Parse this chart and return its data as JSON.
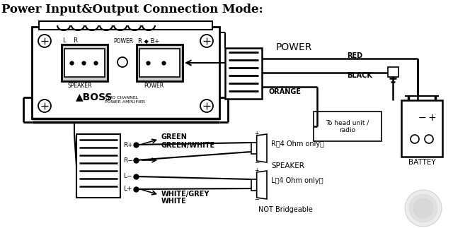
{
  "title": "Power Input&Output Connection Mode:",
  "bg_color": "#ffffff",
  "fg_color": "#000000",
  "labels": {
    "power": "POWER",
    "red": "RED",
    "black": "BLACK",
    "orange": "ORANGE",
    "to_head": "To head unit /\nradio",
    "r_speaker": "R（4 Ohm only）",
    "l_speaker": "L（4 Ohm only）",
    "speaker_section": "SPEAKER",
    "not_bridgeable": "NOT Bridgeable",
    "battery": "BATTEY",
    "green": "GREEN",
    "green_white": "GREEN/WHITE",
    "white_grey": "WHITE/GREY",
    "white": "WHITE",
    "r_plus": "R+",
    "r_minus": "R−",
    "l_minus": "L−",
    "l_plus": "L+",
    "speaker_lbl": "SPEAKER",
    "power_lbl": "POWER",
    "l_r": "L    R",
    "r_b": "R ◆ B+"
  }
}
